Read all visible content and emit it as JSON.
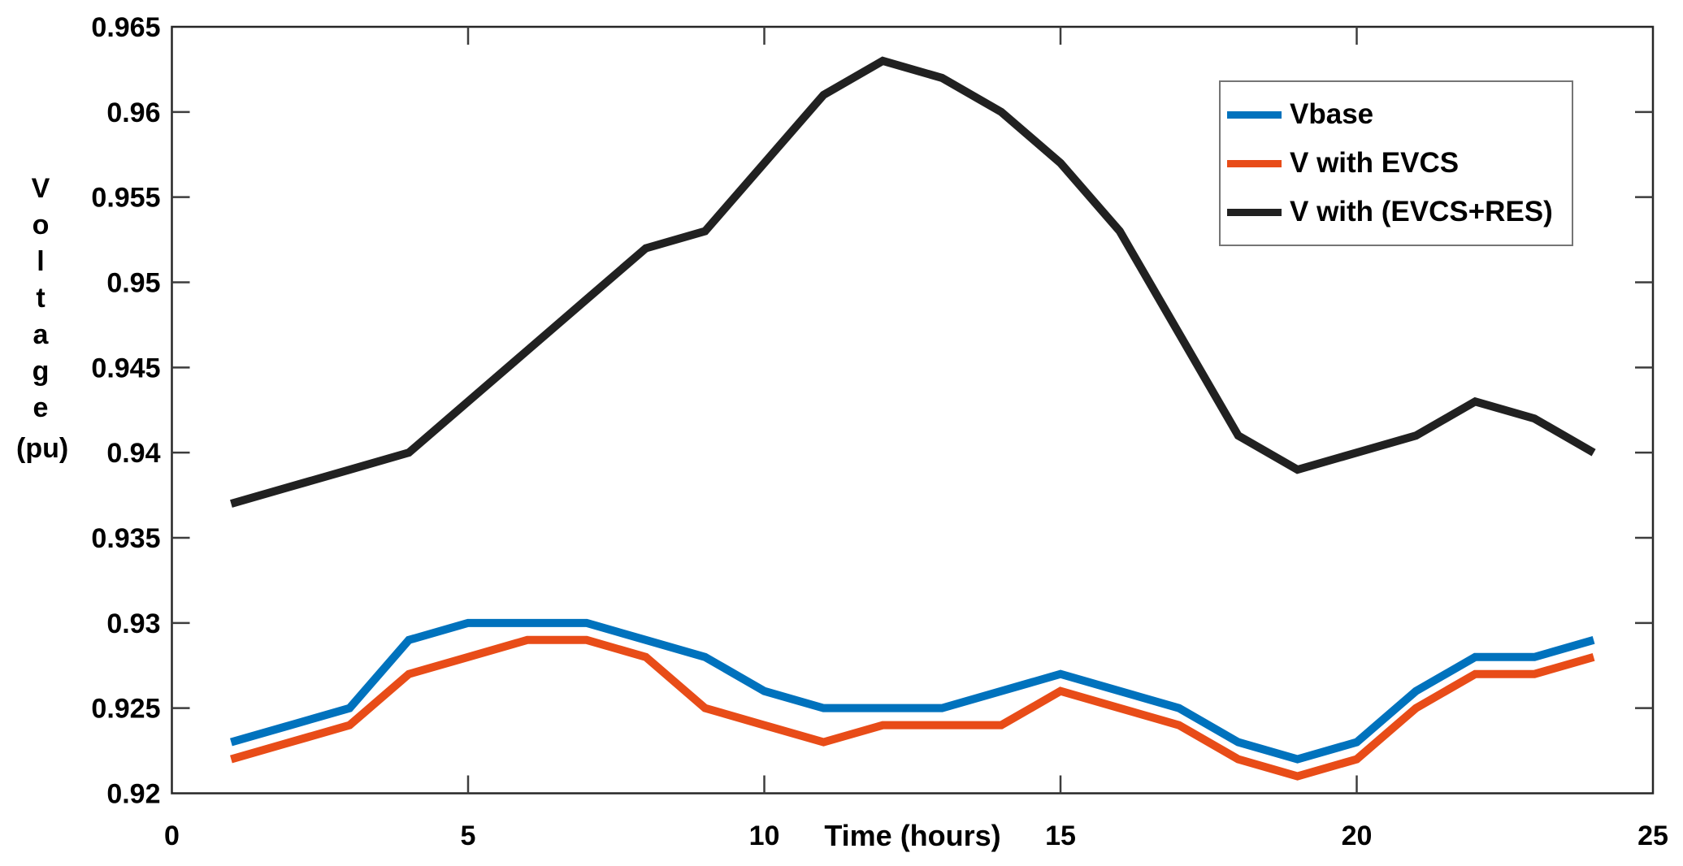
{
  "axes": {
    "xlabel": "Time (hours)",
    "ylabel_letters": [
      "V",
      "o",
      "l",
      "t",
      "a",
      "g",
      "e"
    ],
    "ylabel_unit": "(pu)",
    "xlim": [
      0,
      25
    ],
    "ylim": [
      0.92,
      0.965
    ],
    "xticks": [
      "0",
      "5",
      "10",
      "15",
      "20",
      "25"
    ],
    "xtick_values": [
      0,
      5,
      10,
      15,
      20,
      25
    ],
    "ytick_labels": [
      "0.92",
      "0.925",
      "0.93",
      "0.935",
      "0.94",
      "0.945",
      "0.95",
      "0.955",
      "0.96",
      "0.965"
    ],
    "ytick_values": [
      0.92,
      0.925,
      0.93,
      0.935,
      0.94,
      0.945,
      0.95,
      0.955,
      0.96,
      0.965
    ],
    "axis_color": "#262626",
    "tick_color": "#3d3d3d",
    "grid": false,
    "box": true
  },
  "chart_data": {
    "type": "line",
    "x": [
      1,
      2,
      3,
      4,
      5,
      6,
      7,
      8,
      9,
      10,
      11,
      12,
      13,
      14,
      15,
      16,
      17,
      18,
      19,
      20,
      21,
      22,
      23,
      24
    ],
    "series": [
      {
        "name": "Vbase",
        "color": "#0072BD",
        "values": [
          0.923,
          0.924,
          0.925,
          0.929,
          0.93,
          0.93,
          0.93,
          0.929,
          0.928,
          0.926,
          0.925,
          0.925,
          0.925,
          0.926,
          0.927,
          0.926,
          0.925,
          0.923,
          0.922,
          0.923,
          0.926,
          0.928,
          0.928,
          0.929
        ]
      },
      {
        "name": "V with EVCS",
        "color": "#E84C18",
        "values": [
          0.922,
          0.923,
          0.924,
          0.927,
          0.928,
          0.929,
          0.929,
          0.928,
          0.925,
          0.924,
          0.923,
          0.924,
          0.924,
          0.924,
          0.926,
          0.925,
          0.924,
          0.922,
          0.921,
          0.922,
          0.925,
          0.927,
          0.927,
          0.928
        ]
      },
      {
        "name": "V with (EVCS+RES)",
        "color": "#212121",
        "values": [
          0.937,
          0.938,
          0.939,
          0.94,
          0.943,
          0.946,
          0.949,
          0.952,
          0.953,
          0.957,
          0.961,
          0.963,
          0.962,
          0.96,
          0.957,
          0.953,
          0.947,
          0.941,
          0.939,
          0.94,
          0.941,
          0.943,
          0.942,
          0.94
        ]
      }
    ],
    "title": "",
    "xlabel": "Time (hours)",
    "ylabel": "Voltage (pu)",
    "xlim": [
      0,
      25
    ],
    "ylim": [
      0.92,
      0.965
    ],
    "legend_position": "northeast",
    "grid": false,
    "line_width": 10
  }
}
